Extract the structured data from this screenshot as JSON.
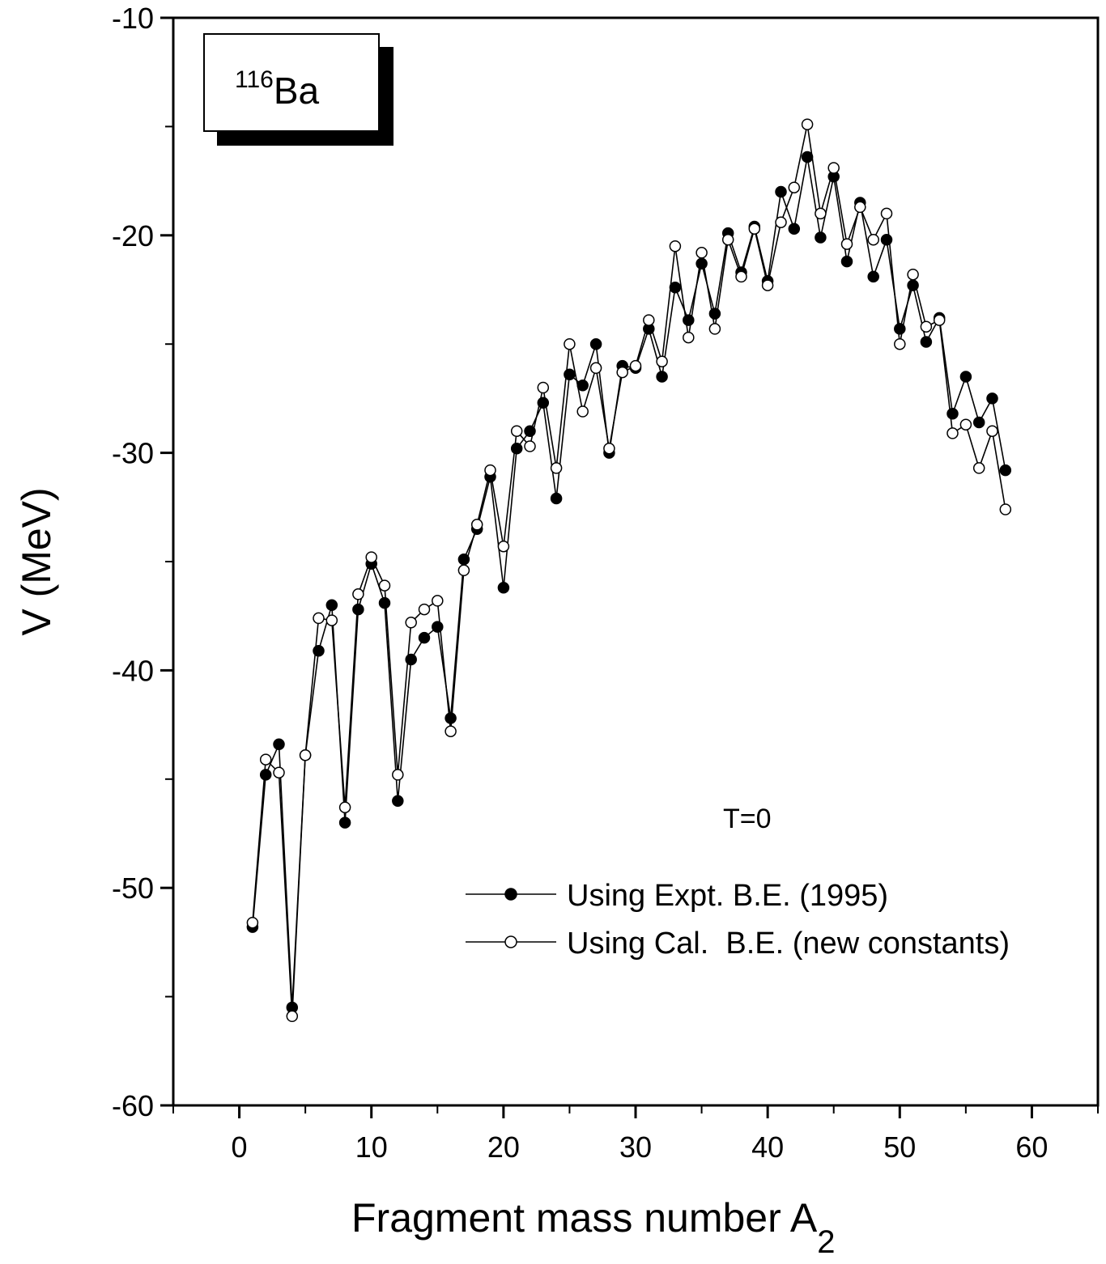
{
  "chart_data": {
    "type": "line",
    "title": "",
    "nucleus_label": {
      "mass": "116",
      "symbol": "Ba"
    },
    "annotation": "T=0",
    "xlabel": {
      "text": "Fragment mass number A",
      "subscript": "2"
    },
    "ylabel": "V (MeV)",
    "xlim": [
      -5,
      65
    ],
    "ylim": [
      -60,
      -10
    ],
    "x_ticks": [
      0,
      10,
      20,
      30,
      40,
      50,
      60
    ],
    "y_ticks": [
      -60,
      -50,
      -40,
      -30,
      -20,
      -10
    ],
    "grid": false,
    "legend_position": "bottom-right",
    "x": [
      1,
      2,
      3,
      4,
      5,
      6,
      7,
      8,
      9,
      10,
      11,
      12,
      13,
      14,
      15,
      16,
      17,
      18,
      19,
      20,
      21,
      22,
      23,
      24,
      25,
      26,
      27,
      28,
      29,
      30,
      31,
      32,
      33,
      34,
      35,
      36,
      37,
      38,
      39,
      40,
      41,
      42,
      43,
      44,
      45,
      46,
      47,
      48,
      49,
      50,
      51,
      52,
      53,
      54,
      55,
      56,
      57,
      58
    ],
    "series": [
      {
        "name": "Using Expt. B.E. (1995)",
        "marker": "filled-circle",
        "color": "#000000",
        "values": [
          -51.8,
          -44.8,
          -43.4,
          -55.5,
          -43.9,
          -39.1,
          -37.0,
          -47.0,
          -37.2,
          -35.1,
          -36.9,
          -46.0,
          -39.5,
          -38.5,
          -38.0,
          -42.2,
          -34.9,
          -33.5,
          -31.1,
          -36.2,
          -29.8,
          -29.0,
          -27.7,
          -32.1,
          -26.4,
          -26.9,
          -25.0,
          -30.0,
          -26.0,
          -26.1,
          -24.3,
          -26.5,
          -22.4,
          -23.9,
          -21.3,
          -23.6,
          -19.9,
          -21.7,
          -19.6,
          -22.1,
          -18.0,
          -19.7,
          -16.4,
          -20.1,
          -17.3,
          -21.2,
          -18.5,
          -21.9,
          -20.2,
          -24.3,
          -22.3,
          -24.9,
          -23.8,
          -28.2,
          -26.5,
          -28.6,
          -27.5,
          -30.8
        ]
      },
      {
        "name": "Using Cal.  B.E. (new constants)",
        "marker": "open-circle",
        "color": "#000000",
        "values": [
          -51.6,
          -44.1,
          -44.7,
          -55.9,
          -43.9,
          -37.6,
          -37.7,
          -46.3,
          -36.5,
          -34.8,
          -36.1,
          -44.8,
          -37.8,
          -37.2,
          -36.8,
          -42.8,
          -35.4,
          -33.3,
          -30.8,
          -34.3,
          -29.0,
          -29.7,
          -27.0,
          -30.7,
          -25.0,
          -28.1,
          -26.1,
          -29.8,
          -26.3,
          -26.0,
          -23.9,
          -25.8,
          -20.5,
          -24.7,
          -20.8,
          -24.3,
          -20.2,
          -21.9,
          -19.7,
          -22.3,
          -19.4,
          -17.8,
          -14.9,
          -19.0,
          -16.9,
          -20.4,
          -18.7,
          -20.2,
          -19.0,
          -25.0,
          -21.8,
          -24.2,
          -23.9,
          -29.1,
          -28.7,
          -30.7,
          -29.0,
          -32.6
        ]
      }
    ]
  }
}
